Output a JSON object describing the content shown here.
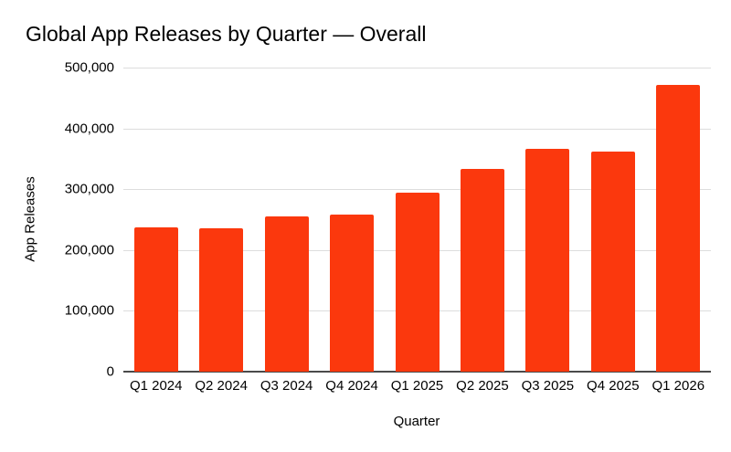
{
  "chart_data": {
    "type": "bar",
    "title": "Global App Releases by Quarter — Overall",
    "xlabel": "Quarter",
    "ylabel": "App Releases",
    "categories": [
      "Q1 2024",
      "Q2 2024",
      "Q3 2024",
      "Q4 2024",
      "Q1 2025",
      "Q2 2025",
      "Q3 2025",
      "Q4 2025",
      "Q1 2026"
    ],
    "values": [
      238000,
      236000,
      256000,
      259000,
      294000,
      334000,
      367000,
      362000,
      472000
    ],
    "ylim": [
      0,
      500000
    ],
    "yticks": [
      {
        "value": 0,
        "label": "0"
      },
      {
        "value": 100000,
        "label": "100,000"
      },
      {
        "value": 200000,
        "label": "200,000"
      },
      {
        "value": 300000,
        "label": "300,000"
      },
      {
        "value": 400000,
        "label": "400,000"
      },
      {
        "value": 500000,
        "label": "500,000"
      }
    ],
    "grid": true,
    "legend_position": "none",
    "colors": {
      "bar": "#fb380d",
      "gridline": "#dddddd",
      "axis_line": "#4a4a4a",
      "text": "#000000",
      "background": "#ffffff"
    }
  }
}
